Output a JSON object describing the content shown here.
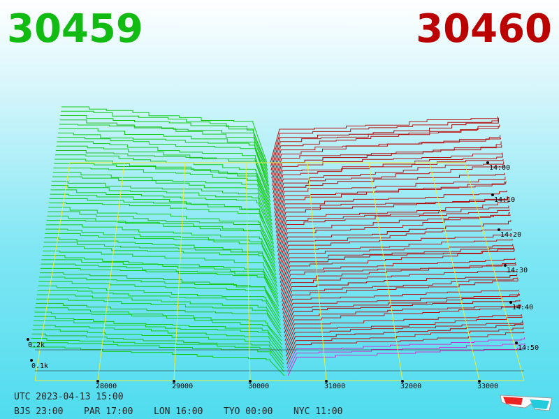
{
  "bid": "30459",
  "ask": "30460",
  "price_axis": [
    "28000",
    "29000",
    "30000",
    "31000",
    "32000",
    "33000"
  ],
  "depth_axis": [
    "0.2k",
    "0.1k"
  ],
  "time_axis": [
    "14:00",
    "14:10",
    "14:20",
    "14:30",
    "14:40",
    "14:50"
  ],
  "utc": "UTC 2023-04-13 15:00",
  "zones": [
    "BJS 23:00",
    "PAR 17:00",
    "LON 16:00",
    "TYO 00:00",
    "NYC 11:00"
  ]
}
